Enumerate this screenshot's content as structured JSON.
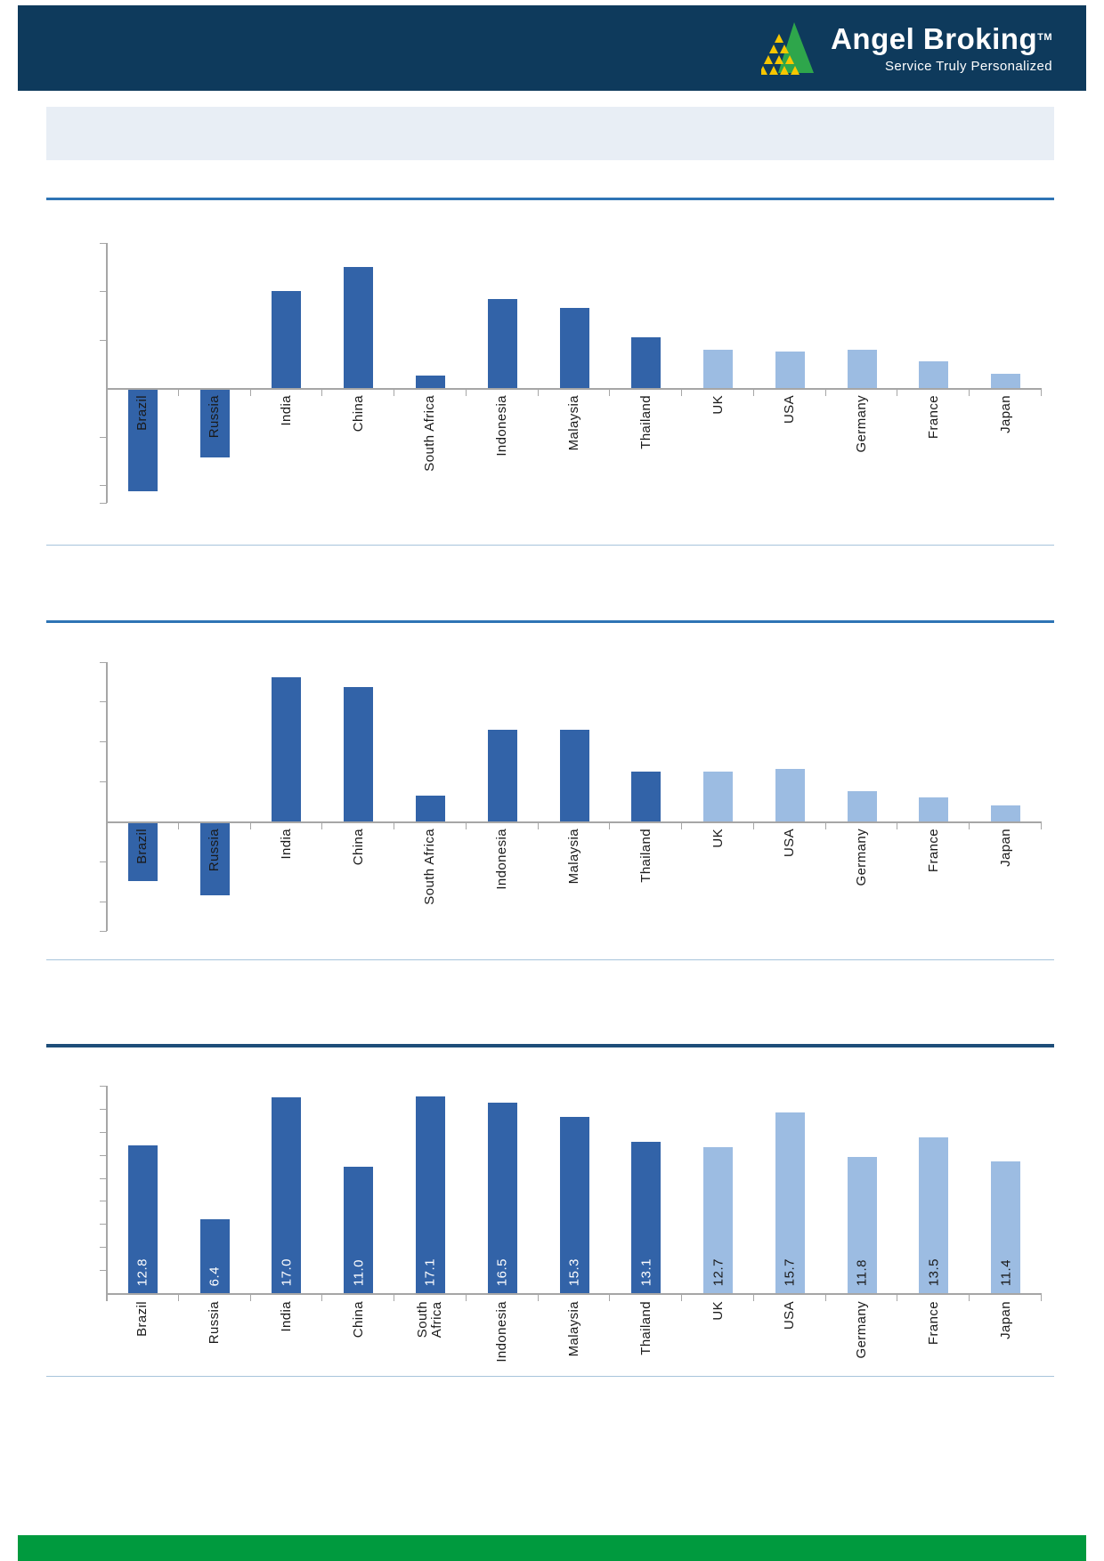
{
  "header": {
    "brand": "Angel Broking",
    "trademark": "TM",
    "tagline": "Service Truly Personalized"
  },
  "colors": {
    "header_bg": "#0E3A5C",
    "bar_dark_blue": "#3263A8",
    "bar_light_blue": "#9CBCE2",
    "divider_blue": "#2E74B5",
    "divider_dark_navy": "#1E4E79",
    "section_rule_light": "#A7C4DB",
    "axis_gray": "#A6A6A6",
    "title_box_bg": "#E8EEF5",
    "footer_green": "#009A3E",
    "label_text": "#1A1A1A",
    "value_label_on_dark": "#FFFFFF",
    "logo_green": "#2EA64B",
    "logo_yellow": "#F7C600"
  },
  "chart_data": [
    {
      "id": "chart-1",
      "type": "bar",
      "categories": [
        "Brazil",
        "Russia",
        "India",
        "China",
        "South Africa",
        "Indonesia",
        "Malaysia",
        "Thailand",
        "UK",
        "USA",
        "Germany",
        "France",
        "Japan"
      ],
      "values": [
        -2.1,
        -1.4,
        2.0,
        2.5,
        0.25,
        1.85,
        1.65,
        1.05,
        0.8,
        0.75,
        0.8,
        0.55,
        0.3
      ],
      "title": "",
      "xlabel": "",
      "ylabel": "",
      "y_axis_tick_labels_visible": false,
      "values_note": "y-axis has unlabeled tick marks; values estimated in gridline units from bar heights",
      "color_groups": {
        "dark_blue_first_n": 8,
        "light_blue_last_n": 5
      },
      "grid": false,
      "legend": "none"
    },
    {
      "id": "chart-2",
      "type": "bar",
      "categories": [
        "Brazil",
        "Russia",
        "India",
        "China",
        "South Africa",
        "Indonesia",
        "Malaysia",
        "Thailand",
        "UK",
        "USA",
        "Germany",
        "France",
        "Japan"
      ],
      "values": [
        -1.45,
        -1.8,
        3.6,
        3.35,
        0.65,
        2.3,
        2.3,
        1.25,
        1.25,
        1.3,
        0.75,
        0.6,
        0.4
      ],
      "title": "",
      "xlabel": "",
      "ylabel": "",
      "y_axis_tick_labels_visible": false,
      "values_note": "y-axis has unlabeled tick marks; values estimated in gridline units from bar heights",
      "color_groups": {
        "dark_blue_first_n": 8,
        "light_blue_last_n": 5
      },
      "grid": false,
      "legend": "none"
    },
    {
      "id": "chart-3",
      "type": "bar",
      "categories": [
        "Brazil",
        "Russia",
        "India",
        "China",
        "South\nAfrica",
        "Indonesia",
        "Malaysia",
        "Thailand",
        "UK",
        "USA",
        "Germany",
        "France",
        "Japan"
      ],
      "values": [
        12.8,
        6.4,
        17.0,
        11.0,
        17.1,
        16.5,
        15.3,
        13.1,
        12.7,
        15.7,
        11.8,
        13.5,
        11.4
      ],
      "data_labels": [
        "12.8",
        "6.4",
        "17.0",
        "11.0",
        "17.1",
        "16.5",
        "15.3",
        "13.1",
        "12.7",
        "15.7",
        "11.8",
        "13.5",
        "11.4"
      ],
      "title": "",
      "xlabel": "",
      "ylabel": "",
      "ylim": [
        0,
        18
      ],
      "y_axis_tick_labels_visible": false,
      "color_groups": {
        "dark_blue_first_n": 8,
        "light_blue_last_n": 5
      },
      "grid": false,
      "legend": "none"
    }
  ]
}
